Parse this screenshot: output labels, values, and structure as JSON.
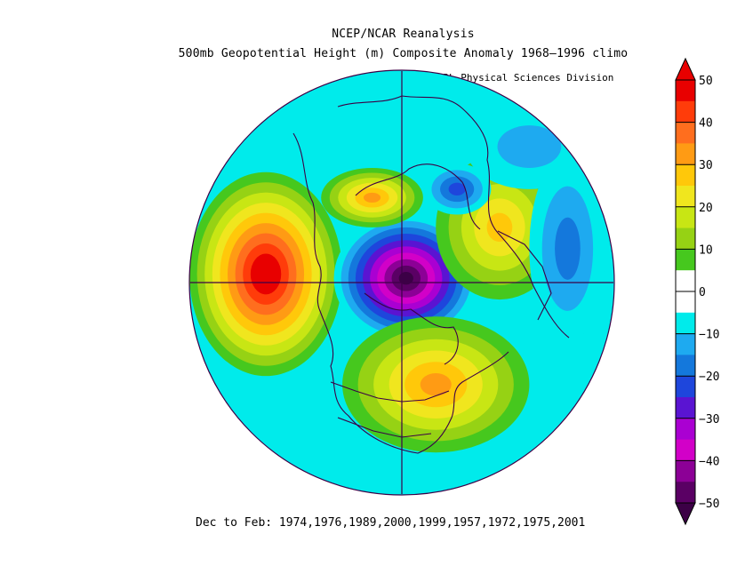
{
  "chart_data": {
    "type": "heatmap",
    "title": "NCEP/NCAR Reanalysis",
    "subtitle": "500mb Geopotential Height (m) Composite Anomaly 1968–1996 climo",
    "credit": "NOAA/ESRL Physical Sciences Division",
    "footer": "Dec to Feb: 1974,1976,1989,2000,1999,1957,1972,1975,2001",
    "projection": "north-polar-stereographic",
    "colorbar": {
      "ticks": [
        "50",
        "40",
        "30",
        "20",
        "10",
        "0",
        "−10",
        "−20",
        "−30",
        "−40",
        "−50"
      ],
      "levels": [
        {
          "min": 45,
          "max": 50,
          "color": "#e80000"
        },
        {
          "min": 40,
          "max": 45,
          "color": "#ff3c0a"
        },
        {
          "min": 35,
          "max": 40,
          "color": "#ff6e1e"
        },
        {
          "min": 30,
          "max": 35,
          "color": "#ff9b14"
        },
        {
          "min": 25,
          "max": 30,
          "color": "#ffc80a"
        },
        {
          "min": 20,
          "max": 25,
          "color": "#f0e61e"
        },
        {
          "min": 15,
          "max": 20,
          "color": "#c8e614"
        },
        {
          "min": 10,
          "max": 15,
          "color": "#96d214"
        },
        {
          "min": 5,
          "max": 10,
          "color": "#46c81e"
        },
        {
          "min": -5,
          "max": 5,
          "color": "#ffffff"
        },
        {
          "min": -10,
          "max": -5,
          "color": "#00ebeb"
        },
        {
          "min": -15,
          "max": -10,
          "color": "#1eaaf0"
        },
        {
          "min": -20,
          "max": -15,
          "color": "#1478dc"
        },
        {
          "min": -25,
          "max": -20,
          "color": "#1e46dc"
        },
        {
          "min": -30,
          "max": -25,
          "color": "#5a14d2"
        },
        {
          "min": -35,
          "max": -30,
          "color": "#aa00d2"
        },
        {
          "min": -40,
          "max": -35,
          "color": "#d200c8"
        },
        {
          "min": -45,
          "max": -40,
          "color": "#8c0096"
        },
        {
          "min": -50,
          "max": -45,
          "color": "#5a0064"
        },
        {
          "min": -55,
          "max": -50,
          "color": "#3c0046"
        }
      ]
    },
    "features": [
      {
        "name": "north-pacific-high",
        "value": 50,
        "shape": "ellipse",
        "cx": 0.18,
        "cy": 0.48,
        "rx": 0.18,
        "ry": 0.24
      },
      {
        "name": "polar-low",
        "value": -50,
        "shape": "ellipse",
        "cx": 0.51,
        "cy": 0.49,
        "rx": 0.17,
        "ry": 0.15
      },
      {
        "name": "eastern-us-high",
        "value": 30,
        "shape": "ellipse",
        "cx": 0.58,
        "cy": 0.74,
        "rx": 0.22,
        "ry": 0.16
      },
      {
        "name": "europe-high",
        "value": 25,
        "shape": "ellipse",
        "cx": 0.73,
        "cy": 0.37,
        "rx": 0.15,
        "ry": 0.17
      },
      {
        "name": "siberia-high",
        "value": 30,
        "shape": "ellipse",
        "cx": 0.43,
        "cy": 0.3,
        "rx": 0.12,
        "ry": 0.07
      },
      {
        "name": "barents-low",
        "value": -20,
        "shape": "ellipse",
        "cx": 0.63,
        "cy": 0.28,
        "rx": 0.08,
        "ry": 0.06
      },
      {
        "name": "west-asia-low",
        "value": -15,
        "shape": "ellipse",
        "cx": 0.89,
        "cy": 0.42,
        "rx": 0.09,
        "ry": 0.22
      },
      {
        "name": "north-africa-low",
        "value": -10,
        "shape": "ellipse",
        "cx": 0.8,
        "cy": 0.18,
        "rx": 0.15,
        "ry": 0.1
      }
    ]
  }
}
